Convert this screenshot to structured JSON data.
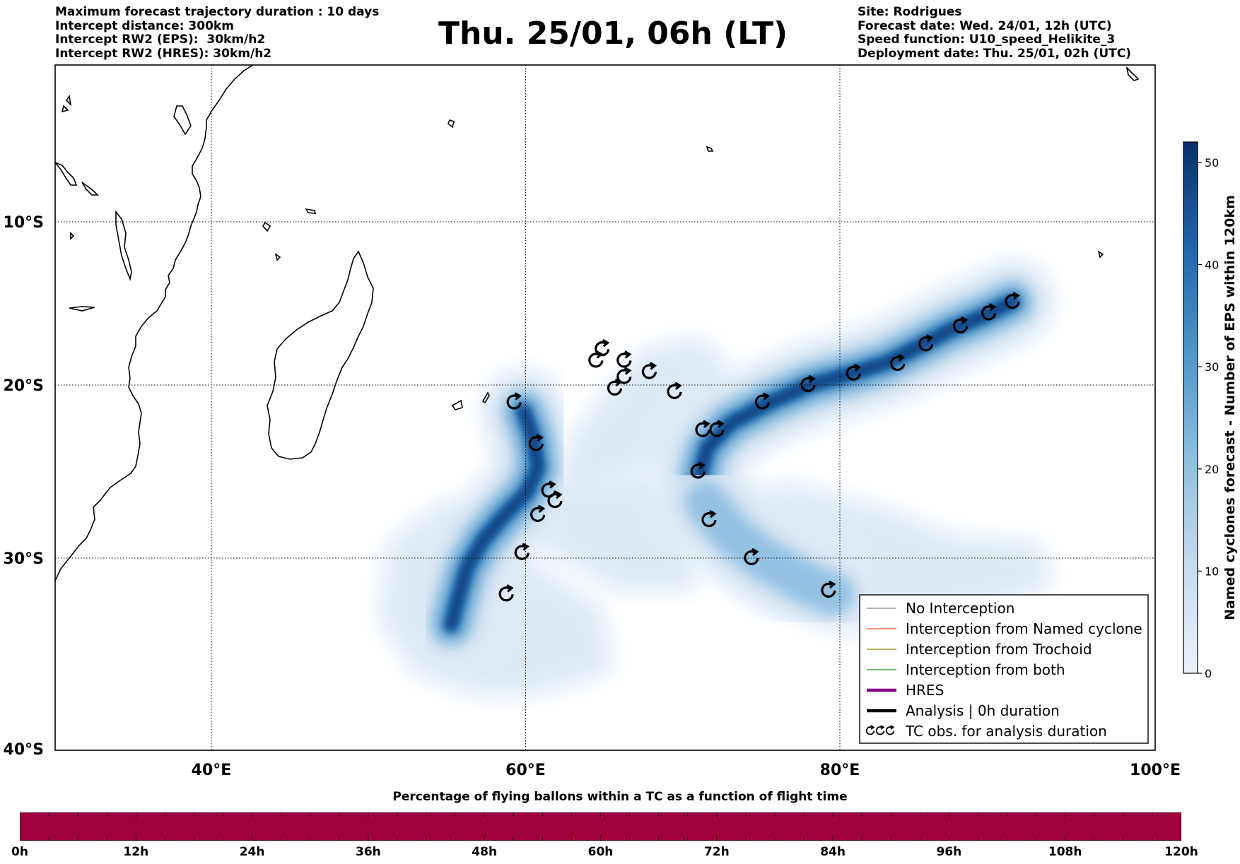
{
  "header_left": [
    "Maximum forecast trajectory duration : 10 days",
    "Intercept distance: 300km",
    "Intercept RW2 (EPS):  30km/h2",
    "Intercept RW2 (HRES): 30km/h2"
  ],
  "header_right": [
    "Site: Rodrigues",
    "Forecast date: Wed. 24/01, 12h (UTC)",
    "Speed function: U10_speed_Helikite_3",
    "Deployment date: Thu. 25/01, 02h (UTC)"
  ],
  "title": "Thu. 25/01, 06h (LT)",
  "map": {
    "lon_ticks": [
      "40°E",
      "60°E",
      "80°E",
      "100°E"
    ],
    "lat_ticks": [
      "10°S",
      "20°S",
      "30°S",
      "40°S"
    ],
    "gridlines": true
  },
  "colorbar": {
    "label": "Named cyclones forecast - Number of EPS within 120km",
    "ticks": [
      "0",
      "10",
      "20",
      "30",
      "40",
      "50"
    ],
    "range": [
      0,
      52
    ],
    "colors": [
      "#eaf2fb",
      "#08306b"
    ]
  },
  "legend": [
    {
      "label": "No Interception",
      "color": "#808080",
      "style": "thin"
    },
    {
      "label": "Interception from Named cyclone",
      "color": "#ff5a1f",
      "style": "thin"
    },
    {
      "label": "Interception from Trochoid",
      "color": "#8b8b00",
      "style": "thin"
    },
    {
      "label": "Interception from both",
      "color": "#1a9a1a",
      "style": "thin"
    },
    {
      "label": "HRES",
      "color": "#8b008b",
      "style": "thick"
    },
    {
      "label": "Analysis | 0h duration",
      "color": "#000000",
      "style": "thick"
    },
    {
      "label": "TC obs. for analysis duration",
      "color": "#000000",
      "style": "symbol"
    }
  ],
  "bottom": {
    "title": "Percentage of flying ballons within a TC as a function of flight time",
    "bar_color": "#a0003c",
    "time_ticks": [
      "0h",
      "12h",
      "24h",
      "36h",
      "48h",
      "60h",
      "72h",
      "84h",
      "96h",
      "108h",
      "120h"
    ]
  },
  "tc_obs": [
    {
      "lon": 59.2,
      "lat": -21.0
    },
    {
      "lon": 60.6,
      "lat": -23.4
    },
    {
      "lon": 61.4,
      "lat": -26.1
    },
    {
      "lon": 61.8,
      "lat": -26.7
    },
    {
      "lon": 60.7,
      "lat": -27.5
    },
    {
      "lon": 59.7,
      "lat": -29.7
    },
    {
      "lon": 58.7,
      "lat": -31.9
    },
    {
      "lon": 64.8,
      "lat": -17.8
    },
    {
      "lon": 64.4,
      "lat": -18.5
    },
    {
      "lon": 66.2,
      "lat": -18.5
    },
    {
      "lon": 66.2,
      "lat": -19.5
    },
    {
      "lon": 65.6,
      "lat": -20.2
    },
    {
      "lon": 67.8,
      "lat": -19.2
    },
    {
      "lon": 69.4,
      "lat": -20.4
    },
    {
      "lon": 71.2,
      "lat": -22.6
    },
    {
      "lon": 72.1,
      "lat": -22.6
    },
    {
      "lon": 70.9,
      "lat": -25.0
    },
    {
      "lon": 71.6,
      "lat": -27.8
    },
    {
      "lon": 74.3,
      "lat": -30.0
    },
    {
      "lon": 79.2,
      "lat": -31.7
    },
    {
      "lon": 75.0,
      "lat": -21.0
    },
    {
      "lon": 77.9,
      "lat": -20.0
    },
    {
      "lon": 80.8,
      "lat": -19.3
    },
    {
      "lon": 83.6,
      "lat": -18.7
    },
    {
      "lon": 85.4,
      "lat": -17.5
    },
    {
      "lon": 87.6,
      "lat": -16.4
    },
    {
      "lon": 89.4,
      "lat": -15.6
    },
    {
      "lon": 90.9,
      "lat": -14.9
    }
  ],
  "density_tracks": [
    {
      "intensity": 1.0,
      "points": [
        [
          90.9,
          -14.9
        ],
        [
          89.0,
          -15.8
        ],
        [
          87.0,
          -16.6
        ],
        [
          85.0,
          -17.6
        ],
        [
          83.0,
          -18.6
        ],
        [
          81.0,
          -19.2
        ],
        [
          78.0,
          -20.0
        ],
        [
          75.5,
          -21.0
        ],
        [
          73.0,
          -22.2
        ],
        [
          71.5,
          -23.6
        ],
        [
          71.0,
          -25.2
        ],
        [
          71.4,
          -26.8
        ]
      ]
    },
    {
      "intensity": 0.55,
      "points": [
        [
          71.4,
          -26.8
        ],
        [
          73.0,
          -28.6
        ],
        [
          75.0,
          -30.0
        ],
        [
          77.5,
          -31.2
        ],
        [
          79.5,
          -31.9
        ]
      ]
    },
    {
      "intensity": 0.95,
      "points": [
        [
          59.8,
          -21.5
        ],
        [
          60.4,
          -23.0
        ],
        [
          60.7,
          -24.8
        ],
        [
          60.0,
          -26.2
        ],
        [
          58.5,
          -27.6
        ],
        [
          57.2,
          -29.0
        ],
        [
          56.2,
          -30.5
        ],
        [
          55.6,
          -32.2
        ],
        [
          55.2,
          -33.5
        ]
      ]
    }
  ],
  "diffuse_regions": [
    {
      "points": [
        [
          63.5,
          -23.5
        ],
        [
          66.0,
          -20.5
        ],
        [
          68.0,
          -18.5
        ],
        [
          71.0,
          -18.0
        ],
        [
          73.0,
          -21.0
        ],
        [
          70.0,
          -24.0
        ],
        [
          66.0,
          -24.5
        ],
        [
          63.0,
          -25.5
        ]
      ]
    },
    {
      "points": [
        [
          60.0,
          -27.0
        ],
        [
          64.0,
          -26.0
        ],
        [
          68.0,
          -26.0
        ],
        [
          70.0,
          -28.0
        ],
        [
          70.0,
          -31.0
        ],
        [
          66.0,
          -31.0
        ],
        [
          63.0,
          -29.5
        ],
        [
          60.5,
          -28.5
        ]
      ]
    },
    {
      "points": [
        [
          73.0,
          -27.0
        ],
        [
          77.0,
          -26.5
        ],
        [
          83.0,
          -28.0
        ],
        [
          87.0,
          -29.5
        ],
        [
          92.0,
          -29.8
        ],
        [
          92.5,
          -31.0
        ],
        [
          86.0,
          -32.5
        ],
        [
          80.0,
          -33.2
        ],
        [
          75.0,
          -31.5
        ],
        [
          72.0,
          -29.5
        ]
      ]
    },
    {
      "points": [
        [
          52.0,
          -29.5
        ],
        [
          55.0,
          -27.5
        ],
        [
          58.0,
          -29.0
        ],
        [
          61.0,
          -31.5
        ],
        [
          64.0,
          -33.0
        ],
        [
          64.5,
          -35.5
        ],
        [
          60.0,
          -36.5
        ],
        [
          57.0,
          -36.5
        ],
        [
          53.5,
          -35.5
        ],
        [
          51.5,
          -33.0
        ]
      ]
    }
  ]
}
